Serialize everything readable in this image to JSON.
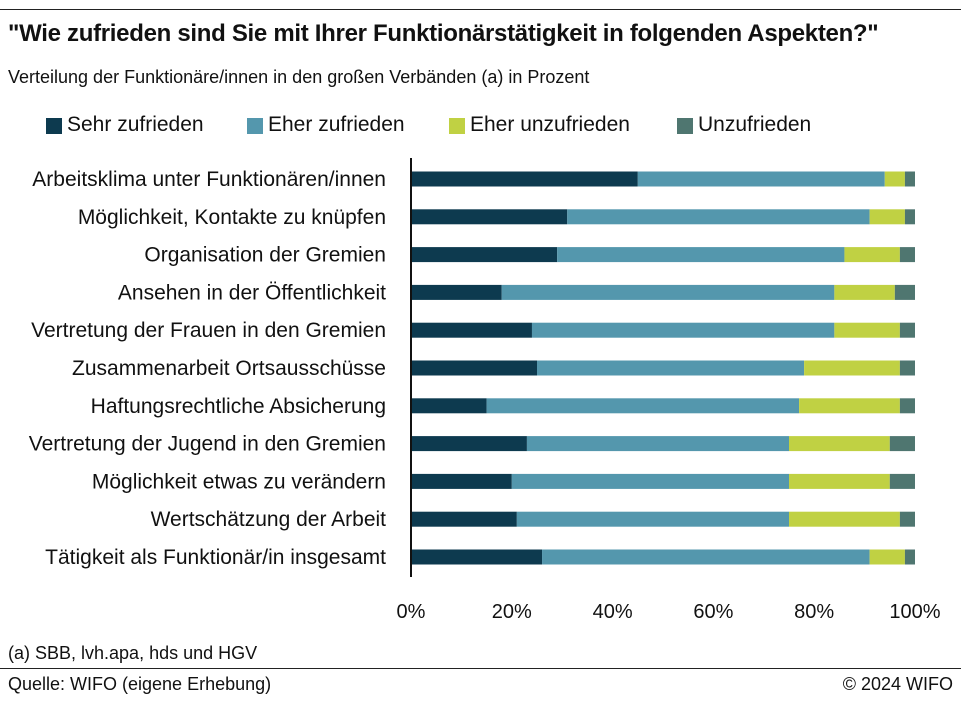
{
  "header": {
    "title": "\"Wie zufrieden sind Sie mit Ihrer Funktionärstätigkeit in folgenden Aspekten?\"",
    "subtitle": "Verteilung der Funktionäre/innen in den großen Verbänden (a) in Prozent"
  },
  "footer": {
    "note": "(a) SBB, lvh.apa, hds und HGV",
    "source": "Quelle: WIFO (eigene Erhebung)",
    "copyright": "© 2024 WIFO"
  },
  "chart_data": {
    "type": "bar",
    "orientation": "horizontal",
    "stacked": true,
    "categories": [
      "Arbeitsklima unter Funktionären/innen",
      "Möglichkeit, Kontakte zu knüpfen",
      "Organisation der Gremien",
      "Ansehen in der Öffentlichkeit",
      "Vertretung der Frauen in den Gremien",
      "Zusammenarbeit Ortsausschüsse",
      "Haftungsrechtliche Absicherung",
      "Vertretung der Jugend in den Gremien",
      "Möglichkeit etwas zu verändern",
      "Wertschätzung der Arbeit",
      "Tätigkeit als Funktionär/in insgesamt"
    ],
    "series": [
      {
        "name": "Sehr zufrieden",
        "color": "#0d3a4f",
        "values": [
          45,
          31,
          29,
          18,
          24,
          25,
          15,
          23,
          20,
          21,
          26
        ]
      },
      {
        "name": "Eher zufrieden",
        "color": "#5497ad",
        "values": [
          49,
          60,
          57,
          66,
          60,
          53,
          62,
          52,
          55,
          54,
          65
        ]
      },
      {
        "name": "Eher unzufrieden",
        "color": "#c0d143",
        "values": [
          4,
          7,
          11,
          12,
          13,
          19,
          20,
          20,
          20,
          22,
          7
        ]
      },
      {
        "name": "Unzufrieden",
        "color": "#4f7670",
        "values": [
          2,
          2,
          3,
          4,
          3,
          3,
          3,
          5,
          5,
          3,
          2
        ]
      }
    ],
    "xaxis": {
      "ticks": [
        "0%",
        "20%",
        "40%",
        "60%",
        "80%",
        "100%"
      ],
      "min": 0,
      "max": 100
    },
    "legend_position": "top",
    "grid": false
  }
}
